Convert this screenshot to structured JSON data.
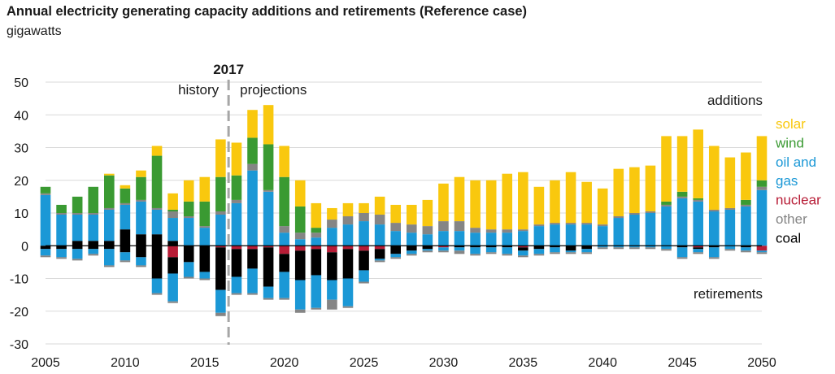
{
  "header": {
    "title": "Annual electricity generating capacity additions and retirements  (Reference case)",
    "unit": "gigawatts"
  },
  "chart_data": {
    "type": "bar",
    "stacked": true,
    "ylim": [
      -30,
      50
    ],
    "yticks": [
      50,
      40,
      30,
      20,
      10,
      0,
      -10,
      -20,
      -30
    ],
    "xlim": [
      2005,
      2050
    ],
    "xticks": [
      2005,
      2010,
      2015,
      2020,
      2025,
      2030,
      2035,
      2040,
      2045,
      2050
    ],
    "divider": {
      "year_label": "2017",
      "left_label": "history",
      "right_label": "projections"
    },
    "annotations": {
      "additions": "additions",
      "retirements": "retirements"
    },
    "colors": {
      "solar": "#f9c80e",
      "wind": "#3a9a32",
      "oilgas": "#1b98d6",
      "nuclear": "#b71c36",
      "other": "#858585",
      "coal": "#000000",
      "grid": "#d9d9d9"
    },
    "legend": [
      {
        "key": "solar",
        "label": "solar"
      },
      {
        "key": "wind",
        "label": "wind"
      },
      {
        "key": "oilgas",
        "label": "oil and"
      },
      {
        "key": "oilgas",
        "label": "gas"
      },
      {
        "key": "nuclear",
        "label": "nuclear"
      },
      {
        "key": "other",
        "label": "other"
      },
      {
        "key": "coal",
        "label": "coal"
      }
    ],
    "stack_order": {
      "additions": [
        "coal",
        "oilgas",
        "other",
        "wind",
        "solar"
      ],
      "retirements": [
        "nuclear",
        "coal",
        "oilgas",
        "other"
      ]
    },
    "years": [
      2005,
      2006,
      2007,
      2008,
      2009,
      2010,
      2011,
      2012,
      2013,
      2014,
      2015,
      2016,
      2017,
      2018,
      2019,
      2020,
      2021,
      2022,
      2023,
      2024,
      2025,
      2026,
      2027,
      2028,
      2029,
      2030,
      2031,
      2032,
      2033,
      2034,
      2035,
      2036,
      2037,
      2038,
      2039,
      2040,
      2041,
      2042,
      2043,
      2044,
      2045,
      2046,
      2047,
      2048,
      2049,
      2050
    ],
    "additions": {
      "coal": [
        0,
        0,
        1.5,
        1.5,
        1.5,
        5,
        3.5,
        3.5,
        1.5,
        0,
        0,
        0,
        0,
        0,
        0,
        0,
        0,
        0,
        0,
        0,
        0,
        0,
        0,
        0,
        0,
        0,
        0,
        0,
        0,
        0,
        0,
        0,
        0,
        0,
        0,
        0,
        0,
        0,
        0,
        0,
        0,
        0,
        0,
        0,
        0,
        0
      ],
      "oilgas": [
        15.5,
        9.5,
        8,
        8,
        9.5,
        7.5,
        10,
        7.5,
        7,
        8.5,
        5.5,
        9.5,
        13,
        23,
        16.5,
        4,
        2,
        2.5,
        5.5,
        6.5,
        7.5,
        6.5,
        4.5,
        4,
        3.5,
        4.5,
        4.5,
        4,
        4,
        4,
        4.5,
        6,
        6.5,
        6.5,
        6.5,
        6,
        8.5,
        9.5,
        10,
        12,
        14.5,
        13.5,
        10.5,
        11,
        12,
        17
      ],
      "other": [
        0.5,
        0.5,
        0.5,
        0.5,
        0.5,
        0.5,
        0.5,
        0.5,
        2,
        0.5,
        0.5,
        1,
        1,
        2,
        0.5,
        2,
        2,
        1.5,
        2.5,
        2.5,
        2.5,
        3,
        2.5,
        2.5,
        2.5,
        3,
        3,
        1.5,
        1,
        1,
        0.5,
        0.5,
        0.5,
        0.5,
        0.5,
        0.5,
        0.5,
        0.5,
        0.5,
        0.5,
        0.5,
        0.5,
        0.5,
        0.5,
        0.5,
        1
      ],
      "wind": [
        2,
        2.5,
        5,
        8,
        10,
        4.5,
        7,
        16,
        0.5,
        4.5,
        7.5,
        10.5,
        7.5,
        8,
        14,
        15,
        8,
        1.5,
        0,
        0,
        0,
        0,
        0,
        0,
        0,
        0,
        0,
        0,
        0,
        0,
        0,
        0,
        0,
        0,
        0,
        0,
        0,
        0,
        0,
        1,
        1.5,
        0.5,
        0,
        0,
        1.5,
        2
      ],
      "solar": [
        0,
        0,
        0,
        0,
        0.5,
        1,
        2,
        3,
        5,
        6.5,
        7.5,
        11.5,
        10,
        8.5,
        12,
        9.5,
        8,
        7.5,
        3.5,
        4,
        3,
        5.5,
        5.5,
        6,
        8,
        11.5,
        13.5,
        14.5,
        15,
        17,
        17.5,
        11.5,
        13,
        15.5,
        12.5,
        11,
        14.5,
        14,
        14,
        20,
        17,
        21,
        19.5,
        15.5,
        14.5,
        13.5
      ]
    },
    "retirements": {
      "nuclear": [
        0,
        0,
        0,
        0,
        0,
        0,
        0,
        0,
        -3.5,
        0,
        0,
        -0.5,
        -1,
        -1,
        -0.5,
        -2.5,
        -1.5,
        -1,
        -2,
        -1,
        -1.5,
        -1,
        0,
        0,
        0,
        -0.5,
        0,
        0,
        0,
        0,
        -0.5,
        0,
        0,
        0,
        0,
        0,
        0,
        0,
        0,
        0,
        0,
        -0.5,
        0,
        0,
        0,
        -1.5
      ],
      "coal": [
        -1,
        -1,
        -1,
        -1,
        -1,
        -2,
        -3.5,
        -10,
        -5,
        -5,
        -8,
        -13,
        -8.5,
        -6,
        -12,
        -5.5,
        -9,
        -8,
        -8.5,
        -9,
        -6,
        -3,
        -2.5,
        -1.5,
        -1,
        0,
        -0.5,
        -0.5,
        -0.5,
        -0.5,
        -1,
        -1,
        -0.5,
        -1.5,
        -1,
        0,
        0,
        0,
        0,
        0,
        -0.5,
        -0.5,
        -0.5,
        0,
        -0.5,
        0
      ],
      "oilgas": [
        -2,
        -2.5,
        -3,
        -1.5,
        -5,
        -2.5,
        -2.5,
        -4.5,
        -8.5,
        -4.5,
        -2,
        -7,
        -5,
        -7.5,
        -3.5,
        -8,
        -9,
        -10,
        -6,
        -8.5,
        -3.5,
        -0.5,
        -1,
        -1,
        -0.5,
        -1,
        -1,
        -2,
        -1.5,
        -2,
        -1.5,
        -1.5,
        -1.5,
        -0.5,
        -1,
        -0.5,
        -0.5,
        -0.5,
        -0.5,
        -1,
        -3,
        -1,
        -3,
        -1,
        -1,
        -0.5
      ],
      "other": [
        -0.5,
        -0.5,
        -0.5,
        -0.5,
        -0.5,
        -0.5,
        -0.5,
        -0.5,
        -0.5,
        -0.5,
        -0.5,
        -1,
        -0.5,
        -0.5,
        -0.5,
        -0.5,
        -1,
        -0.5,
        -3,
        -0.5,
        -0.5,
        -0.5,
        -0.5,
        -0.5,
        -0.5,
        -0.5,
        -1,
        -0.5,
        -0.5,
        -0.5,
        -0.5,
        -0.5,
        -0.5,
        -0.5,
        -0.5,
        -0.5,
        -0.5,
        -0.5,
        -0.5,
        -0.5,
        -0.5,
        -0.5,
        -0.5,
        -0.5,
        -0.5,
        -0.5
      ]
    }
  }
}
